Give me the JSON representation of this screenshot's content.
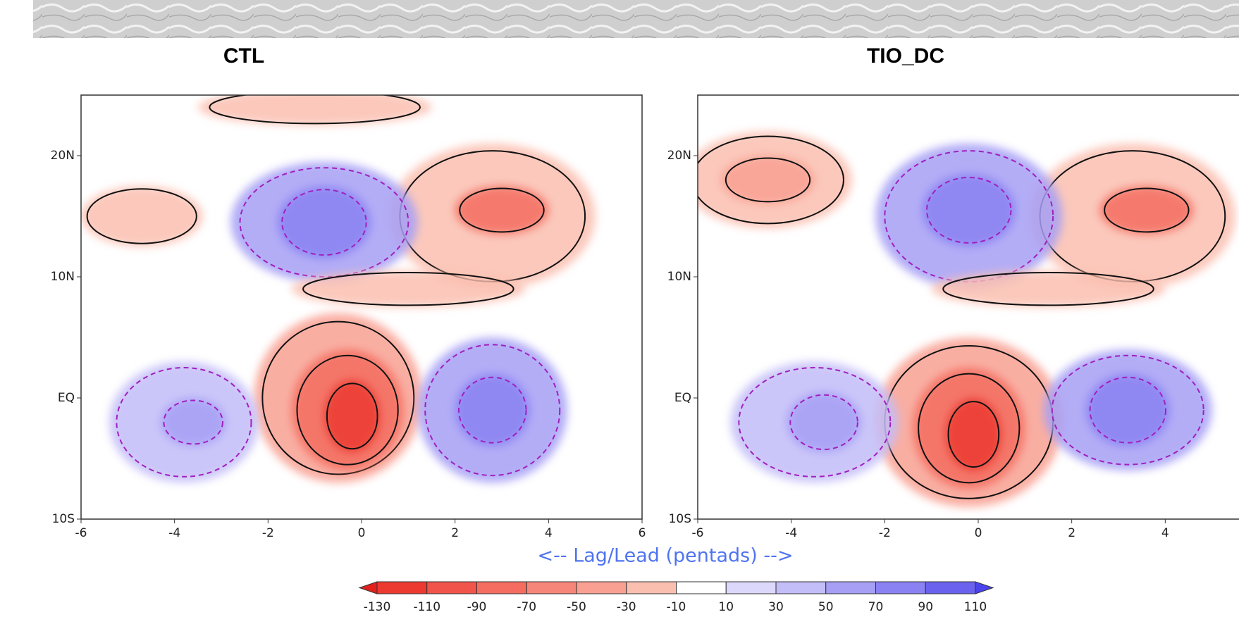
{
  "chart_data": [
    {
      "type": "contour",
      "title": "CTL",
      "xlim": [
        -6,
        6
      ],
      "xticks": [
        -6,
        -4,
        -2,
        0,
        2,
        4,
        6
      ],
      "ylim": [
        -10,
        25
      ],
      "yticks": [
        {
          "value": -10,
          "label": "10S"
        },
        {
          "value": 0,
          "label": "EQ"
        },
        {
          "value": 10,
          "label": "10N"
        },
        {
          "value": 20,
          "label": "20N"
        }
      ]
    },
    {
      "type": "contour",
      "title": "TIO_DC",
      "xlim": [
        -6,
        6
      ],
      "xticks": [
        -6,
        -4,
        -2,
        0,
        2,
        4
      ],
      "ylim": [
        -10,
        25
      ],
      "yticks": [
        {
          "value": -10,
          "label": "10S"
        },
        {
          "value": 0,
          "label": "EQ"
        },
        {
          "value": 10,
          "label": "10N"
        },
        {
          "value": 20,
          "label": "20N"
        }
      ]
    }
  ],
  "x_label": "<-- Lag/Lead (pentads) -->",
  "colorbar": {
    "ticks": [
      -130,
      -110,
      -90,
      -70,
      -50,
      -30,
      -10,
      10,
      30,
      50,
      70,
      90,
      110
    ],
    "colors": [
      "#e3201c",
      "#ec3a31",
      "#f1544a",
      "#f46d60",
      "#f6867a",
      "#f9a092",
      "#fbbfb0",
      "#ffffff",
      "#dcd8fb",
      "#c3bdf8",
      "#a69ff5",
      "#8a82f2",
      "#6a62ee",
      "#4a44ea"
    ]
  }
}
